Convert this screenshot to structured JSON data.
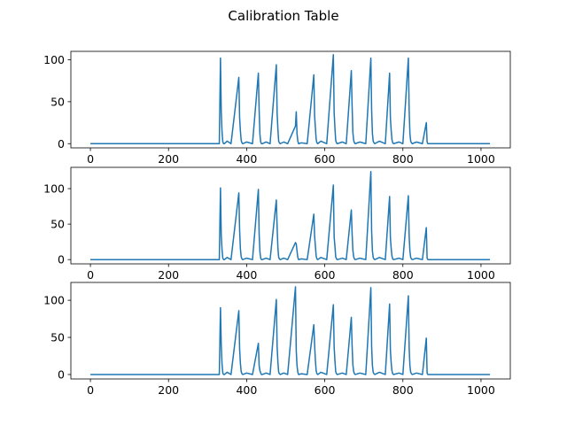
{
  "figure": {
    "title": "Calibration Table"
  },
  "chart_data": [
    {
      "type": "line",
      "xlim": [
        -50,
        1075
      ],
      "ylim": [
        -5,
        110
      ],
      "xticks": [
        0,
        200,
        400,
        600,
        800,
        1000
      ],
      "yticks": [
        0,
        50,
        100
      ],
      "color": "#1f77b4",
      "series": [
        {
          "x": [
            0,
            330,
            333,
            335,
            337,
            339,
            341,
            343,
            350,
            360,
            380,
            382,
            384,
            386,
            388,
            390,
            400,
            415,
            430,
            432,
            434,
            436,
            438,
            440,
            450,
            460,
            476,
            478,
            480,
            482,
            484,
            486,
            495,
            505,
            525,
            527,
            529,
            531,
            533,
            540,
            555,
            572,
            574,
            576,
            578,
            580,
            582,
            590,
            605,
            622,
            624,
            626,
            628,
            630,
            632,
            645,
            655,
            668,
            670,
            672,
            674,
            676,
            678,
            690,
            705,
            718,
            720,
            722,
            724,
            726,
            728,
            740,
            755,
            766,
            768,
            770,
            772,
            774,
            776,
            790,
            800,
            814,
            816,
            818,
            820,
            822,
            824,
            835,
            850,
            860,
            862,
            864,
            1023
          ],
          "y": [
            0,
            0,
            102,
            38,
            14,
            2,
            0,
            0,
            3,
            0,
            79,
            31,
            15,
            4,
            1,
            0,
            2,
            0,
            84,
            40,
            11,
            2,
            0,
            0,
            2,
            0,
            94,
            37,
            17,
            3,
            1,
            0,
            2,
            0,
            21,
            38,
            12,
            3,
            0,
            1,
            0,
            82,
            33,
            19,
            5,
            1,
            0,
            3,
            0,
            106,
            37,
            19,
            4,
            1,
            0,
            2,
            0,
            87,
            45,
            13,
            4,
            1,
            0,
            2,
            0,
            102,
            40,
            12,
            3,
            1,
            0,
            3,
            0,
            84,
            31,
            16,
            5,
            1,
            0,
            2,
            0,
            102,
            41,
            12,
            3,
            1,
            0,
            2,
            0,
            25,
            2,
            0,
            0
          ]
        }
      ]
    },
    {
      "type": "line",
      "xlim": [
        -50,
        1075
      ],
      "ylim": [
        -6,
        130
      ],
      "xticks": [
        0,
        200,
        400,
        600,
        800,
        1000
      ],
      "yticks": [
        0,
        50,
        100
      ],
      "color": "#1f77b4",
      "series": [
        {
          "x": [
            0,
            330,
            333,
            335,
            337,
            339,
            341,
            343,
            350,
            360,
            380,
            382,
            384,
            386,
            388,
            390,
            400,
            415,
            430,
            432,
            434,
            436,
            438,
            440,
            450,
            460,
            476,
            478,
            480,
            482,
            484,
            486,
            495,
            505,
            525,
            527,
            529,
            531,
            533,
            540,
            555,
            572,
            574,
            576,
            578,
            580,
            582,
            590,
            605,
            622,
            624,
            626,
            628,
            630,
            632,
            645,
            655,
            668,
            670,
            672,
            674,
            676,
            678,
            690,
            705,
            718,
            720,
            722,
            724,
            726,
            728,
            740,
            755,
            766,
            768,
            770,
            772,
            774,
            776,
            790,
            800,
            814,
            816,
            818,
            820,
            822,
            824,
            835,
            850,
            860,
            862,
            864,
            1023
          ],
          "y": [
            0,
            0,
            101,
            34,
            14,
            2,
            0,
            0,
            3,
            0,
            94,
            42,
            15,
            4,
            1,
            0,
            2,
            0,
            99,
            36,
            11,
            2,
            0,
            0,
            2,
            0,
            84,
            46,
            17,
            3,
            1,
            0,
            2,
            0,
            24,
            22,
            12,
            3,
            0,
            1,
            0,
            64,
            33,
            19,
            5,
            1,
            0,
            3,
            0,
            105,
            32,
            19,
            4,
            1,
            0,
            2,
            0,
            70,
            37,
            13,
            4,
            1,
            0,
            2,
            0,
            124,
            40,
            12,
            3,
            1,
            0,
            3,
            0,
            89,
            31,
            16,
            5,
            1,
            0,
            2,
            0,
            90,
            34,
            12,
            3,
            1,
            0,
            2,
            0,
            45,
            2,
            0,
            0
          ]
        }
      ]
    },
    {
      "type": "line",
      "xlim": [
        -50,
        1075
      ],
      "ylim": [
        -6,
        124
      ],
      "xticks": [
        0,
        200,
        400,
        600,
        800,
        1000
      ],
      "yticks": [
        0,
        50,
        100
      ],
      "color": "#1f77b4",
      "series": [
        {
          "x": [
            0,
            330,
            333,
            335,
            337,
            339,
            341,
            343,
            350,
            360,
            380,
            382,
            384,
            386,
            388,
            390,
            400,
            415,
            430,
            432,
            434,
            436,
            438,
            440,
            450,
            460,
            476,
            478,
            480,
            482,
            484,
            486,
            495,
            505,
            525,
            527,
            529,
            531,
            533,
            540,
            555,
            572,
            574,
            576,
            578,
            580,
            582,
            590,
            605,
            622,
            624,
            626,
            628,
            630,
            632,
            645,
            655,
            668,
            670,
            672,
            674,
            676,
            678,
            690,
            705,
            718,
            720,
            722,
            724,
            726,
            728,
            740,
            755,
            766,
            768,
            770,
            772,
            774,
            776,
            790,
            800,
            814,
            816,
            818,
            820,
            822,
            824,
            835,
            850,
            860,
            862,
            864,
            1023
          ],
          "y": [
            0,
            0,
            90,
            40,
            14,
            2,
            0,
            0,
            3,
            0,
            86,
            35,
            15,
            4,
            1,
            0,
            2,
            0,
            42,
            12,
            5,
            2,
            0,
            0,
            2,
            0,
            101,
            38,
            17,
            3,
            1,
            0,
            2,
            0,
            118,
            32,
            12,
            3,
            0,
            1,
            0,
            67,
            40,
            19,
            5,
            1,
            0,
            3,
            0,
            94,
            37,
            19,
            4,
            1,
            0,
            2,
            0,
            77,
            39,
            13,
            4,
            1,
            0,
            2,
            0,
            117,
            38,
            12,
            3,
            1,
            0,
            3,
            0,
            95,
            33,
            16,
            5,
            1,
            0,
            2,
            0,
            106,
            37,
            12,
            3,
            1,
            0,
            2,
            0,
            49,
            2,
            0,
            0
          ]
        }
      ]
    }
  ]
}
